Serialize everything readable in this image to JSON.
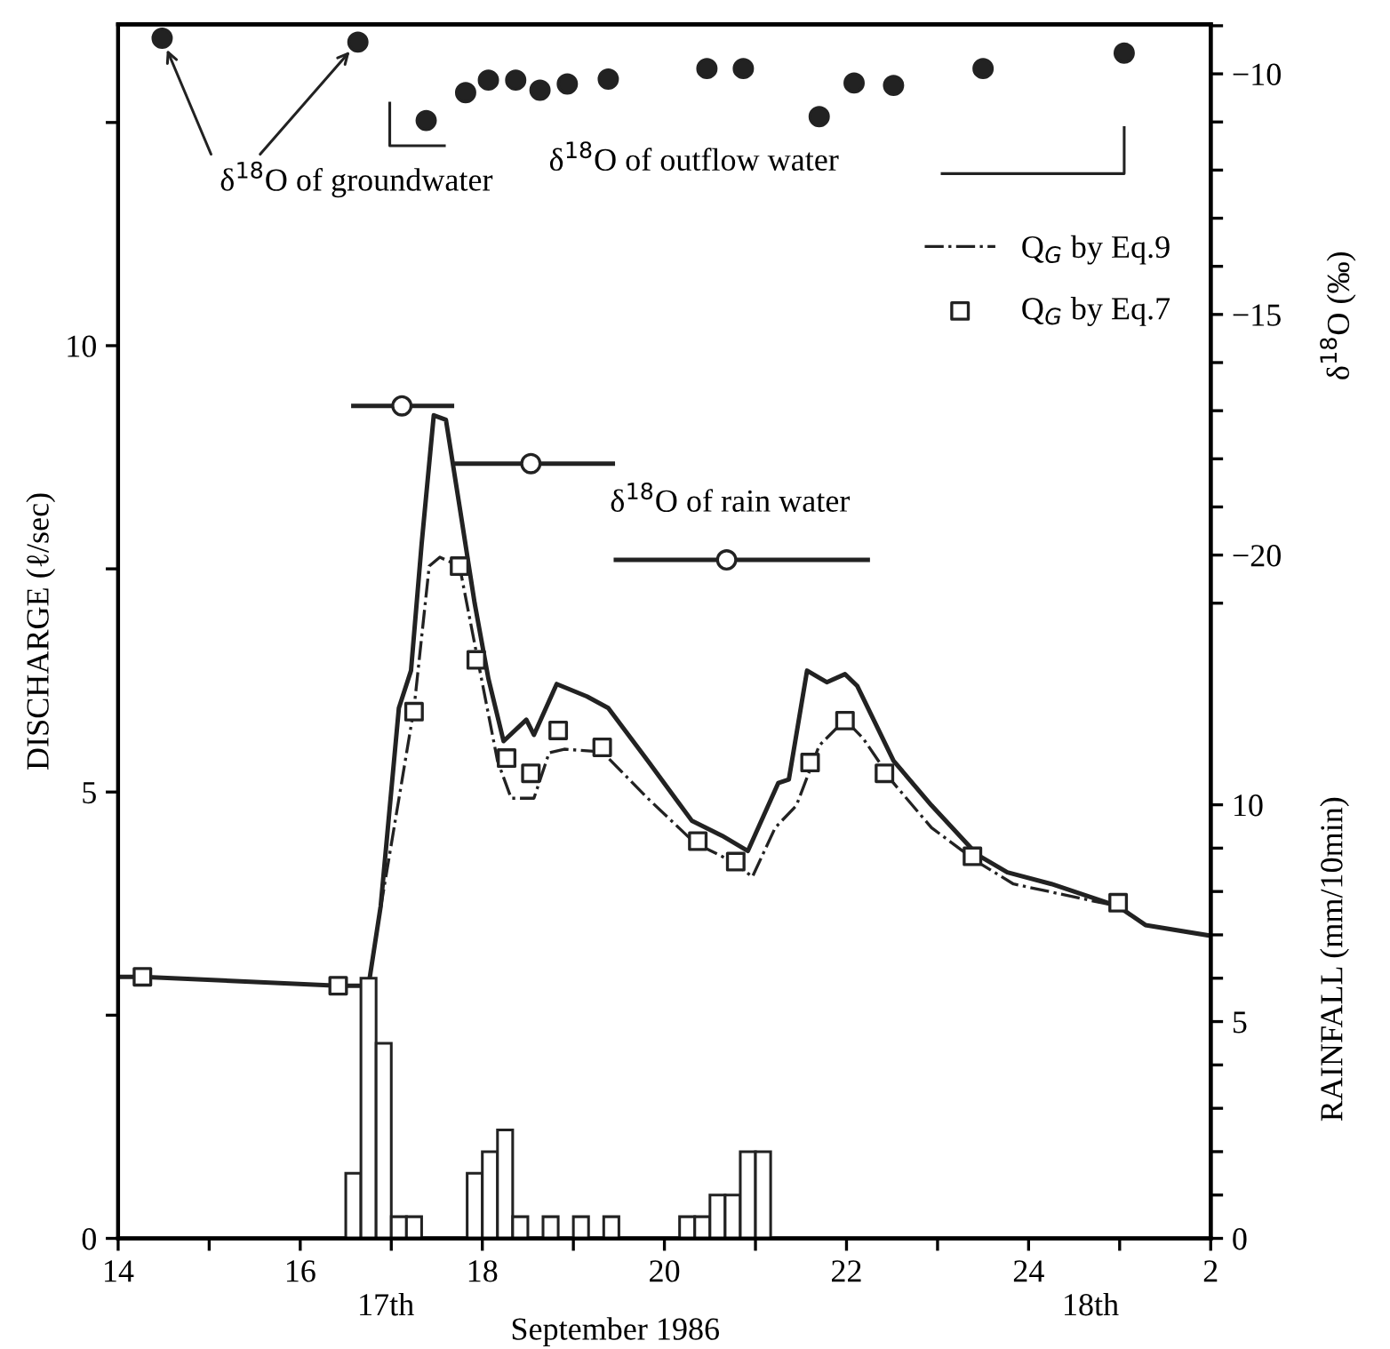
{
  "chart_data": {
    "type": "line",
    "ylabel": "DISCHARGE (ℓ/sec)",
    "y2label": "δ$^{18}$O (‰)",
    "y3label": "RAINFALL (mm/10min)",
    "xlabel": "September 1986",
    "annotations": [
      "17th",
      "18th"
    ],
    "xlim": [
      "1986-09-17T14:00",
      "1986-09-18T02:00"
    ],
    "xticks": [
      {
        "value": "1986-09-17T14:00",
        "label": "14"
      },
      {
        "value": "1986-09-17T15:00",
        "label": null
      },
      {
        "value": "1986-09-17T16:00",
        "label": "16"
      },
      {
        "value": "1986-09-17T17:00",
        "label": null
      },
      {
        "value": "1986-09-17T18:00",
        "label": "18"
      },
      {
        "value": "1986-09-17T19:00",
        "label": null
      },
      {
        "value": "1986-09-17T20:00",
        "label": "20"
      },
      {
        "value": "1986-09-17T21:00",
        "label": null
      },
      {
        "value": "1986-09-17T22:00",
        "label": "22"
      },
      {
        "value": "1986-09-17T23:00",
        "label": null
      },
      {
        "value": "1986-09-18T00:00",
        "label": "24"
      },
      {
        "value": "1986-09-18T01:00",
        "label": null
      },
      {
        "value": "1986-09-18T02:00",
        "label": "2"
      }
    ],
    "ylim": [
      0,
      13.6
    ],
    "yticks": [
      0,
      {
        "value": 2.5,
        "label": null
      },
      5,
      {
        "value": 7.5,
        "label": null
      },
      10,
      {
        "value": 12.5,
        "label": null
      }
    ],
    "y2lim": [
      -34.2,
      -8.97
    ],
    "y2ticks": [
      {
        "value": -9,
        "label": null
      },
      {
        "value": -10,
        "label": "−10"
      },
      {
        "value": -11,
        "label": null
      },
      {
        "value": -12,
        "label": null
      },
      {
        "value": -13,
        "label": null
      },
      {
        "value": -14,
        "label": null
      },
      {
        "value": -15,
        "label": "−15"
      },
      {
        "value": -16,
        "label": null
      },
      {
        "value": -17,
        "label": null
      },
      {
        "value": -18,
        "label": null
      },
      {
        "value": -19,
        "label": null
      },
      {
        "value": -20,
        "label": "−20"
      },
      {
        "value": -21,
        "label": null
      }
    ],
    "y3lim": [
      0,
      28
    ],
    "y3ticks": [
      0,
      {
        "value": 1,
        "label": null
      },
      {
        "value": 2,
        "label": null
      },
      {
        "value": 3,
        "label": null
      },
      {
        "value": 4,
        "label": null
      },
      5,
      {
        "value": 6,
        "label": null
      },
      {
        "value": 7,
        "label": null
      },
      {
        "value": 8,
        "label": null
      },
      {
        "value": 9,
        "label": null
      },
      10
    ],
    "grid": false,
    "legend": "top right",
    "series": [
      {
        "color": "#222222",
        "line_style": "solid",
        "x": [
          "1986-09-17T14:00",
          "1986-09-17T14:16",
          "1986-09-17T16:25",
          "1986-09-17T16:45",
          "1986-09-17T16:53",
          "1986-09-17T17:05",
          "1986-09-17T17:13",
          "1986-09-17T17:20",
          "1986-09-17T17:28",
          "1986-09-17T17:36",
          "1986-09-17T17:45",
          "1986-09-17T17:55",
          "1986-09-17T18:04",
          "1986-09-17T18:14",
          "1986-09-17T18:29",
          "1986-09-17T18:34",
          "1986-09-17T18:49",
          "1986-09-17T19:09",
          "1986-09-17T19:23",
          "1986-09-17T19:49",
          "1986-09-17T20:18",
          "1986-09-17T20:38",
          "1986-09-17T20:55",
          "1986-09-17T21:15",
          "1986-09-17T21:22",
          "1986-09-17T21:34",
          "1986-09-17T21:47",
          "1986-09-17T21:59",
          "1986-09-17T22:07",
          "1986-09-17T22:31",
          "1986-09-17T22:56",
          "1986-09-17T23:26",
          "1986-09-17T23:46",
          "1986-09-18T00:15",
          "1986-09-18T00:59",
          "1986-09-18T01:17",
          "1986-09-18T02:00"
        ],
        "values": [
          2.93,
          2.93,
          2.83,
          2.83,
          3.72,
          5.94,
          6.36,
          7.78,
          9.22,
          9.17,
          8.2,
          7.11,
          6.27,
          5.57,
          5.81,
          5.64,
          6.21,
          6.07,
          5.94,
          5.35,
          4.68,
          4.51,
          4.34,
          5.1,
          5.14,
          6.36,
          6.23,
          6.32,
          6.19,
          5.35,
          4.85,
          4.3,
          4.1,
          3.97,
          3.72,
          3.51,
          3.39
        ]
      },
      {
        "name": "Q$_{G}$ by Eq.9",
        "color": "#222222",
        "line_style": "dashdot",
        "x": [
          "1986-09-17T16:53",
          "1986-09-17T17:15",
          "1986-09-17T17:25",
          "1986-09-17T17:32",
          "1986-09-17T17:45",
          "1986-09-17T17:57",
          "1986-09-17T18:10",
          "1986-09-17T18:19",
          "1986-09-17T18:34",
          "1986-09-17T18:44",
          "1986-09-17T18:54",
          "1986-09-17T19:19",
          "1986-09-17T19:49",
          "1986-09-17T20:20",
          "1986-09-17T20:45",
          "1986-09-17T20:58",
          "1986-09-17T21:13",
          "1986-09-17T21:27",
          "1986-09-17T21:42",
          "1986-09-17T21:59",
          "1986-09-17T22:11",
          "1986-09-17T22:31",
          "1986-09-17T22:56",
          "1986-09-17T23:26",
          "1986-09-17T23:50",
          "1986-09-18T00:59"
        ],
        "values": [
          3.7,
          5.94,
          7.53,
          7.63,
          7.53,
          6.48,
          5.35,
          4.93,
          4.93,
          5.44,
          5.48,
          5.45,
          4.93,
          4.43,
          4.22,
          4.05,
          4.6,
          4.85,
          5.52,
          5.81,
          5.6,
          5.1,
          4.6,
          4.22,
          3.97,
          3.72
        ]
      },
      {
        "type": "scatter",
        "name": "Q$_{G}$ by Eq.7",
        "color": "#222222",
        "marker": "square",
        "x": [
          "1986-09-17T14:16",
          "1986-09-17T16:25",
          "1986-09-17T17:15",
          "1986-09-17T17:45",
          "1986-09-17T17:56",
          "1986-09-17T18:16",
          "1986-09-17T18:32",
          "1986-09-17T18:50",
          "1986-09-17T19:19",
          "1986-09-17T20:22",
          "1986-09-17T20:47",
          "1986-09-17T21:36",
          "1986-09-17T21:59",
          "1986-09-17T22:25",
          "1986-09-17T23:23",
          "1986-09-18T00:59"
        ],
        "values": [
          2.93,
          2.83,
          5.9,
          7.53,
          6.48,
          5.38,
          5.21,
          5.69,
          5.5,
          4.45,
          4.22,
          5.33,
          5.8,
          5.21,
          4.28,
          3.76
        ]
      },
      {
        "type": "scatter",
        "axis": "y2",
        "name": "δ$^{18}$O of groundwater",
        "color": "#222222",
        "marker": "circle",
        "x": [
          "1986-09-17T14:29",
          "1986-09-17T16:38"
        ],
        "values": [
          -9.26,
          -9.34
        ]
      },
      {
        "type": "scatter",
        "axis": "y2",
        "name": "δ$^{18}$O of outflow water",
        "color": "#222222",
        "marker": "circle",
        "x": [
          "1986-09-17T17:23",
          "1986-09-17T17:49",
          "1986-09-17T18:04",
          "1986-09-17T18:22",
          "1986-09-17T18:38",
          "1986-09-17T18:56",
          "1986-09-17T19:23",
          "1986-09-17T20:28",
          "1986-09-17T20:52",
          "1986-09-17T21:42",
          "1986-09-17T22:05",
          "1986-09-17T22:31",
          "1986-09-17T23:30",
          "1986-09-18T01:03"
        ],
        "values": [
          -10.97,
          -10.39,
          -10.13,
          -10.13,
          -10.34,
          -10.21,
          -10.11,
          -9.89,
          -9.89,
          -10.89,
          -10.19,
          -10.24,
          -9.89,
          -9.57
        ]
      },
      {
        "type": "scatter",
        "axis": "y2",
        "name": "δ$^{18}$O of rain water",
        "color": "#222222",
        "marker": "circle",
        "x": [
          "1986-09-17T17:07",
          "1986-09-17T18:32",
          "1986-09-17T20:41"
        ],
        "values": [
          -16.9,
          -18.1,
          -20.1
        ]
      },
      {
        "axis": "y2",
        "color": "#222222",
        "line_style": "solid",
        "x": [
          "1986-09-17T16:35",
          "1986-09-17T17:40"
        ],
        "values": [
          -16.9,
          -16.9
        ]
      },
      {
        "axis": "y2",
        "color": "#222222",
        "line_style": "solid",
        "x": [
          "1986-09-17T17:43",
          "1986-09-17T19:26"
        ],
        "values": [
          -18.1,
          -18.1
        ]
      },
      {
        "axis": "y2",
        "color": "#222222",
        "line_style": "solid",
        "x": [
          "1986-09-17T19:28",
          "1986-09-17T22:14"
        ],
        "values": [
          -20.1,
          -20.1
        ]
      },
      {
        "type": "bar",
        "axis": "y3",
        "color": "#ffffff",
        "x": [
          "1986-09-17T16:35",
          "1986-09-17T16:45",
          "1986-09-17T16:55",
          "1986-09-17T17:05",
          "1986-09-17T17:15",
          "1986-09-17T17:55",
          "1986-09-17T18:05",
          "1986-09-17T18:15",
          "1986-09-17T18:25",
          "1986-09-17T18:45",
          "1986-09-17T19:05",
          "1986-09-17T19:25",
          "1986-09-17T20:15",
          "1986-09-17T20:25",
          "1986-09-17T20:35",
          "1986-09-17T20:45",
          "1986-09-17T20:55",
          "1986-09-17T21:05"
        ],
        "values": [
          1.5,
          6,
          4.5,
          0.5,
          0.5,
          1.5,
          2,
          2.5,
          0.5,
          0.5,
          0.5,
          0.5,
          0.5,
          0.5,
          1,
          1,
          2,
          2
        ]
      }
    ]
  }
}
